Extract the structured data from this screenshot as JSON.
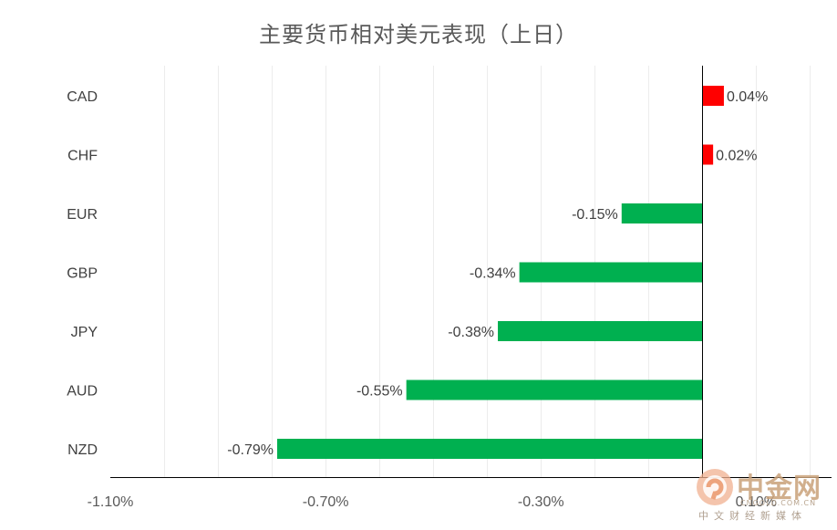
{
  "chart_data": {
    "type": "bar",
    "orientation": "horizontal",
    "title": "主要货币相对美元表现（上日）",
    "categories": [
      "CAD",
      "CHF",
      "EUR",
      "GBP",
      "JPY",
      "AUD",
      "NZD"
    ],
    "values": [
      0.04,
      0.02,
      -0.15,
      -0.34,
      -0.38,
      -0.55,
      -0.79
    ],
    "value_labels": [
      "0.04%",
      "0.02%",
      "-0.15%",
      "-0.34%",
      "-0.38%",
      "-0.55%",
      "-0.79%"
    ],
    "x_ticks": [
      -1.1,
      -0.7,
      -0.3,
      0.1
    ],
    "x_tick_labels": [
      "-1.10%",
      "-0.70%",
      "-0.30%",
      "0.10%"
    ],
    "xlim": [
      -1.1,
      0.24
    ],
    "gridline_step": 0.1,
    "grid": true,
    "legend": "none",
    "colors": {
      "positive": "#ff0000",
      "negative": "#00b050",
      "grid": "#ececec",
      "axis": "#000000"
    }
  },
  "watermark": {
    "brand": "中金网",
    "domain": "CNGOLD.COM.CN",
    "tagline": "中文财经新媒体"
  }
}
